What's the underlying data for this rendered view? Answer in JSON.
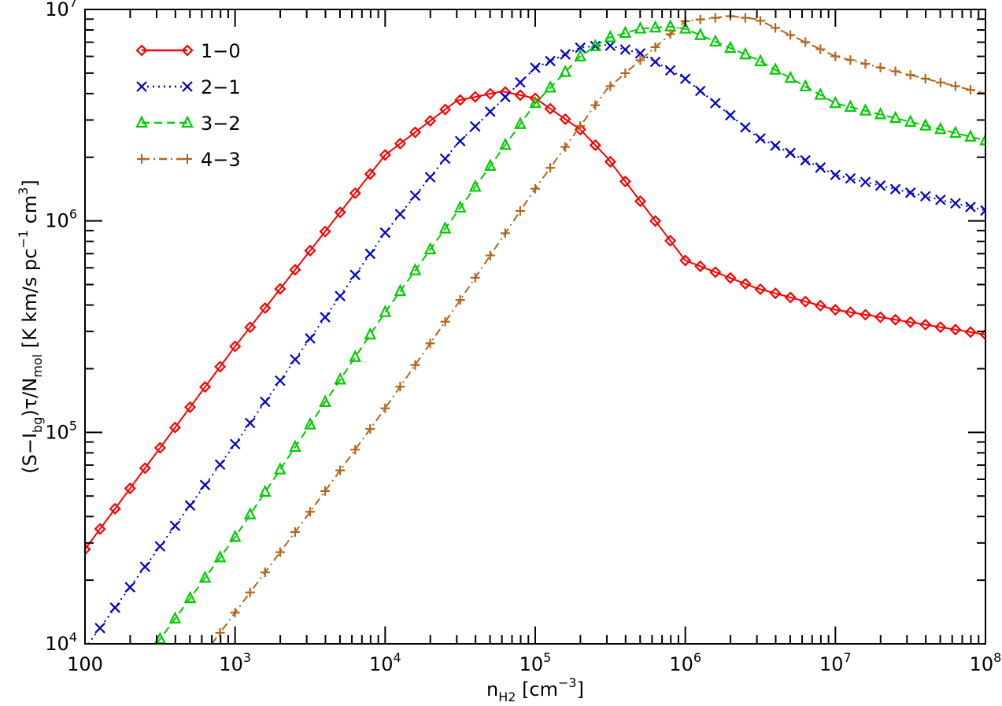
{
  "chart_data": {
    "type": "line",
    "xlabel": {
      "base": "n",
      "sub": "H2",
      "unit": " [cm",
      "unit_sup": "−3",
      "unit_end": "]"
    },
    "ylabel": {
      "parts": [
        {
          "t": "(S−I",
          "k": "n"
        },
        {
          "t": "bg",
          "k": "sub"
        },
        {
          "t": ")",
          "k": "n"
        },
        {
          "t": "τ",
          "k": "n"
        },
        {
          "t": "/N",
          "k": "n"
        },
        {
          "t": "mol",
          "k": "sub"
        },
        {
          "t": " [K km/s pc",
          "k": "n"
        },
        {
          "t": "−1",
          "k": "sup"
        },
        {
          "t": " cm",
          "k": "n"
        },
        {
          "t": "3",
          "k": "sup"
        },
        {
          "t": "]",
          "k": "n"
        }
      ]
    },
    "x_scale": "log",
    "y_scale": "log",
    "xlim": [
      100,
      100000000
    ],
    "ylim": [
      10000,
      10000000
    ],
    "grid": false,
    "legend_position": "top-left",
    "x_ticks": [
      {
        "value": 100,
        "base": "100",
        "exp": ""
      },
      {
        "value": 1000,
        "base": "10",
        "exp": "3"
      },
      {
        "value": 10000,
        "base": "10",
        "exp": "4"
      },
      {
        "value": 100000,
        "base": "10",
        "exp": "5"
      },
      {
        "value": 1000000,
        "base": "10",
        "exp": "6"
      },
      {
        "value": 10000000,
        "base": "10",
        "exp": "7"
      },
      {
        "value": 100000000,
        "base": "10",
        "exp": "8"
      }
    ],
    "y_ticks": [
      {
        "value": 10000,
        "base": "10",
        "exp": "4"
      },
      {
        "value": 100000,
        "base": "10",
        "exp": "5"
      },
      {
        "value": 1000000,
        "base": "10",
        "exp": "6"
      },
      {
        "value": 10000000,
        "base": "10",
        "exp": "7"
      }
    ],
    "series": [
      {
        "name": "1−0",
        "color": "#ff0000",
        "marker": "diamond",
        "dash": "solid",
        "x": [
          100,
          1000,
          3000,
          10000,
          30000,
          60000,
          100000,
          200000,
          300000,
          1000000,
          3000000,
          10000000,
          100000000
        ],
        "y": [
          28000,
          255000,
          690000,
          2050000,
          3700000,
          4100000,
          3800000,
          2700000,
          2000000,
          650000,
          480000,
          380000,
          290000
        ]
      },
      {
        "name": "2−1",
        "color": "#0000cc",
        "marker": "x",
        "dash": "dotted",
        "x": [
          100,
          1000,
          10000,
          30000,
          100000,
          200000,
          300000,
          500000,
          1000000,
          3000000,
          10000000,
          100000000
        ],
        "y": [
          9500,
          88000,
          880000,
          2300000,
          5300000,
          6600000,
          6800000,
          6200000,
          4700000,
          2500000,
          1650000,
          1120000
        ]
      },
      {
        "name": "3−2",
        "color": "#00cc00",
        "marker": "triangle",
        "dash": "dashed",
        "x": [
          300,
          1000,
          10000,
          100000,
          200000,
          300000,
          500000,
          800000,
          1000000,
          3000000,
          10000000,
          100000000
        ],
        "y": [
          10000,
          32000,
          370000,
          3600000,
          6000000,
          7300000,
          8100000,
          8300000,
          8100000,
          5800000,
          3600000,
          2400000
        ]
      },
      {
        "name": "4−3",
        "color": "#b5651d",
        "marker": "plus",
        "dash": "dashdot",
        "x": [
          700,
          3000,
          10000,
          30000,
          100000,
          300000,
          1000000,
          2000000,
          3000000,
          10000000,
          100000000
        ],
        "y": [
          10000,
          40000,
          130000,
          400000,
          1420000,
          4200000,
          8800000,
          9300000,
          9000000,
          6000000,
          4000000
        ]
      }
    ]
  }
}
